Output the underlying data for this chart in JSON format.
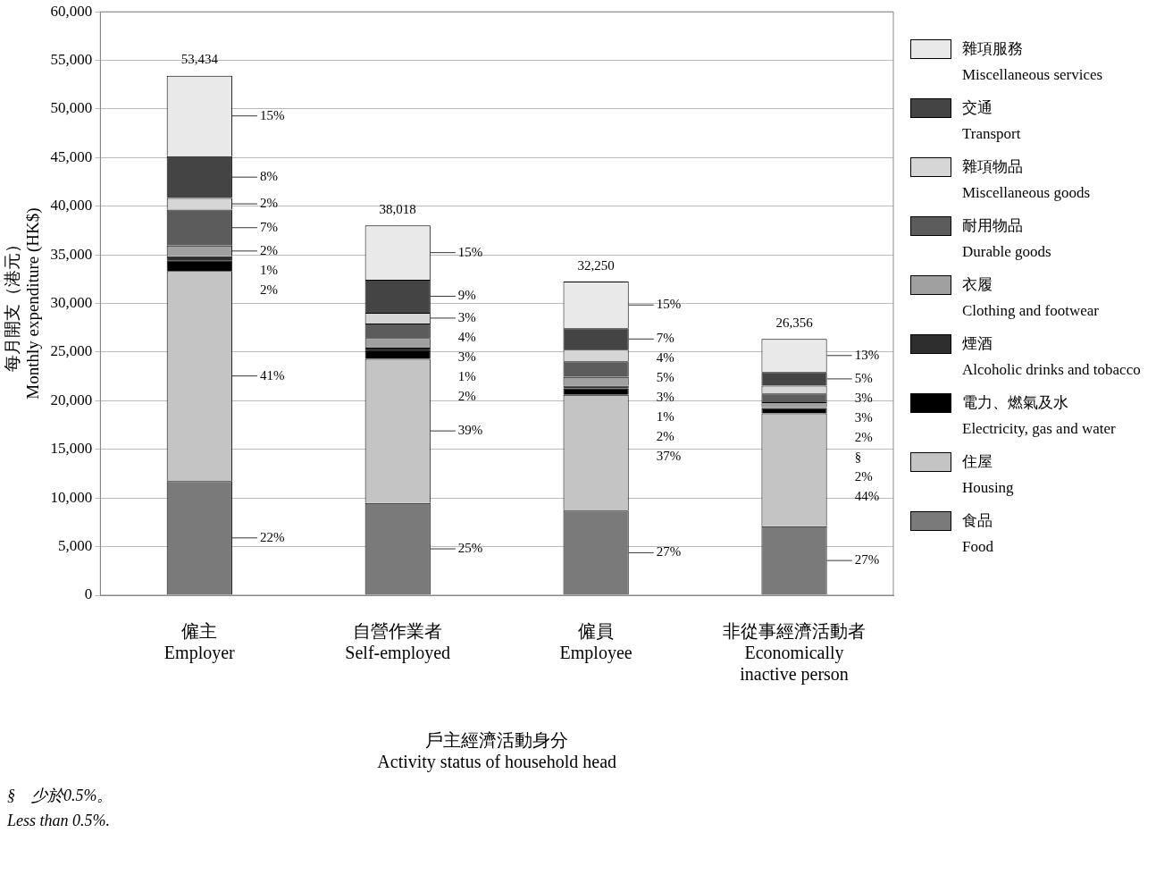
{
  "chart_data": {
    "type": "bar",
    "stacked": true,
    "xlabel": "戶主經濟活動身分\nActivity status of household head",
    "ylabel": "每月開支（港元）\nMonthly expenditure (HK$)",
    "categories": [
      "僱主\nEmployer",
      "自營作業者\nSelf-employed",
      "僱員\nEmployee",
      "非從事經濟活動者\nEconomically\ninactive person"
    ],
    "series": [
      {
        "name": "食品\nFood",
        "color": "#7a7a7a",
        "values": [
          11750,
          9500,
          8700,
          7100
        ]
      },
      {
        "name": "住屋\nHousing",
        "color": "#c4c4c4",
        "values": [
          21600,
          14800,
          11900,
          11600
        ]
      },
      {
        "name": "電力、燃氣及水\nElectricity, gas and water",
        "color": "#000000",
        "values": [
          1100,
          800,
          650,
          550
        ]
      },
      {
        "name": "煙酒\nAlcoholic drinks and tobacco",
        "color": "#2e2e2e",
        "values": [
          400,
          350,
          300,
          100
        ]
      },
      {
        "name": "衣履\nClothing and footwear",
        "color": "#a0a0a0",
        "values": [
          1100,
          1000,
          900,
          500
        ]
      },
      {
        "name": "耐用物品\nDurable goods",
        "color": "#5c5c5c",
        "values": [
          3700,
          1500,
          1600,
          900
        ]
      },
      {
        "name": "雜項物品\nMiscellaneous goods",
        "color": "#d6d6d6",
        "values": [
          1200,
          1100,
          1200,
          800
        ]
      },
      {
        "name": "交通\nTransport",
        "color": "#444444",
        "values": [
          4300,
          3400,
          2200,
          1400
        ]
      },
      {
        "name": "雜項服務\nMiscellaneous services",
        "color": "#e9e9e9",
        "values": [
          8284,
          5568,
          4800,
          3406
        ]
      }
    ],
    "totals": [
      "53,434",
      "38,018",
      "32,250",
      "26,356"
    ],
    "ylim": [
      0,
      60000
    ],
    "yticks": [
      {
        "value": 0,
        "label": "0"
      },
      {
        "value": 5000,
        "label": "5,000"
      },
      {
        "value": 10000,
        "label": "10,000"
      },
      {
        "value": 15000,
        "label": "15,000"
      },
      {
        "value": 20000,
        "label": "20,000"
      },
      {
        "value": 25000,
        "label": "25,000"
      },
      {
        "value": 30000,
        "label": "30,000"
      },
      {
        "value": 35000,
        "label": "35,000"
      },
      {
        "value": 40000,
        "label": "40,000"
      },
      {
        "value": 45000,
        "label": "45,000"
      },
      {
        "value": 50000,
        "label": "50,000"
      },
      {
        "value": 55000,
        "label": "55,000"
      },
      {
        "value": 60000,
        "label": "60,000"
      }
    ],
    "grid": "y",
    "legend": "right",
    "annotations": [
      "15%",
      "8%",
      "2%",
      "7%",
      "2%",
      "1%",
      "2%",
      "41%",
      "22%",
      "15%",
      "9%",
      "3%",
      "4%",
      "3%",
      "1%",
      "2%",
      "39%",
      "25%",
      "15%",
      "7%",
      "4%",
      "5%",
      "3%",
      "1%",
      "2%",
      "37%",
      "27%",
      "13%",
      "5%",
      "3%",
      "3%",
      "2%",
      "§",
      "2%",
      "44%",
      "27%",
      "§　少於0.5%。\nLess than 0.5%."
    ]
  }
}
